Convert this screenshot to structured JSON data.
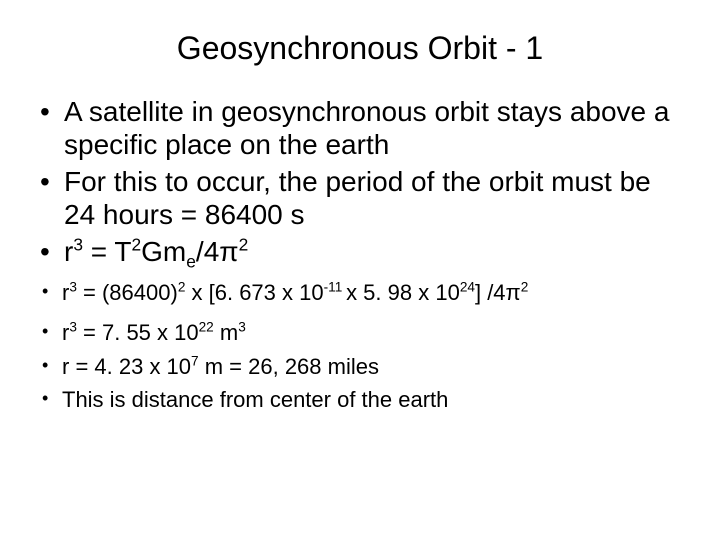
{
  "slide": {
    "title": "Geosynchronous Orbit - 1",
    "bullets_large": [
      "A satellite in geosynchronous orbit stays above a specific place on the earth",
      "For this to occur, the period of the orbit must be 24 hours = 86400 s",
      "r³ = T²Gmₑ/4π²"
    ],
    "bullets_med": [
      "r³ = (86400)² x [6. 673 x 10⁻¹¹ x 5. 98 x 10²⁴] /4π²",
      "r³ = 7. 55 x 10²² m³",
      "r = 4. 23 x 10⁷ m = 26, 268 miles",
      "This is distance from center of the earth"
    ]
  },
  "style": {
    "background_color": "#ffffff",
    "text_color": "#000000",
    "title_fontsize": 32,
    "large_bullet_fontsize": 28,
    "med_bullet_fontsize": 22,
    "font_family": "Arial"
  }
}
